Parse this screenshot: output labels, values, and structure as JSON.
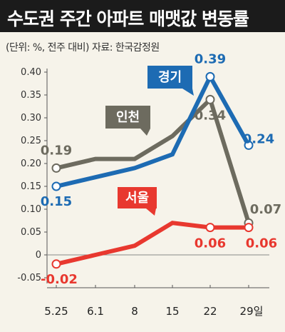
{
  "title": "수도권 주간 아파트 매맷값 변동률",
  "subtitle": "(단위: %, 전주 대비) 자료: 한국감정원",
  "chart_data": {
    "type": "line",
    "categories": [
      "5.25",
      "6.1",
      "8",
      "15",
      "22",
      "29일"
    ],
    "yticks": [
      "0.40",
      "0.35",
      "0.30",
      "0.25",
      "0.20",
      "0.15",
      "0.10",
      "0.05",
      "0",
      "-0.05"
    ],
    "ylim": [
      -0.05,
      0.4
    ],
    "series": [
      {
        "name": "인천",
        "color": "#6d6b5f",
        "values": [
          0.19,
          0.21,
          0.21,
          0.26,
          0.34,
          0.07
        ],
        "labels": [
          {
            "index": 0,
            "text": "0.19"
          },
          {
            "index": 4,
            "text": "0.34"
          },
          {
            "index": 5,
            "text": "0.07"
          }
        ]
      },
      {
        "name": "경기",
        "color": "#1d6bb3",
        "values": [
          0.15,
          0.17,
          0.19,
          0.22,
          0.39,
          0.24
        ],
        "labels": [
          {
            "index": 0,
            "text": "0.15"
          },
          {
            "index": 4,
            "text": "0.39"
          },
          {
            "index": 5,
            "text": "0.24"
          }
        ]
      },
      {
        "name": "서울",
        "color": "#e8382f",
        "values": [
          -0.02,
          0.0,
          0.02,
          0.07,
          0.06,
          0.06
        ],
        "labels": [
          {
            "index": 0,
            "text": "-0.02"
          },
          {
            "index": 4,
            "text": "0.06"
          },
          {
            "index": 5,
            "text": "0.06"
          }
        ]
      }
    ]
  }
}
